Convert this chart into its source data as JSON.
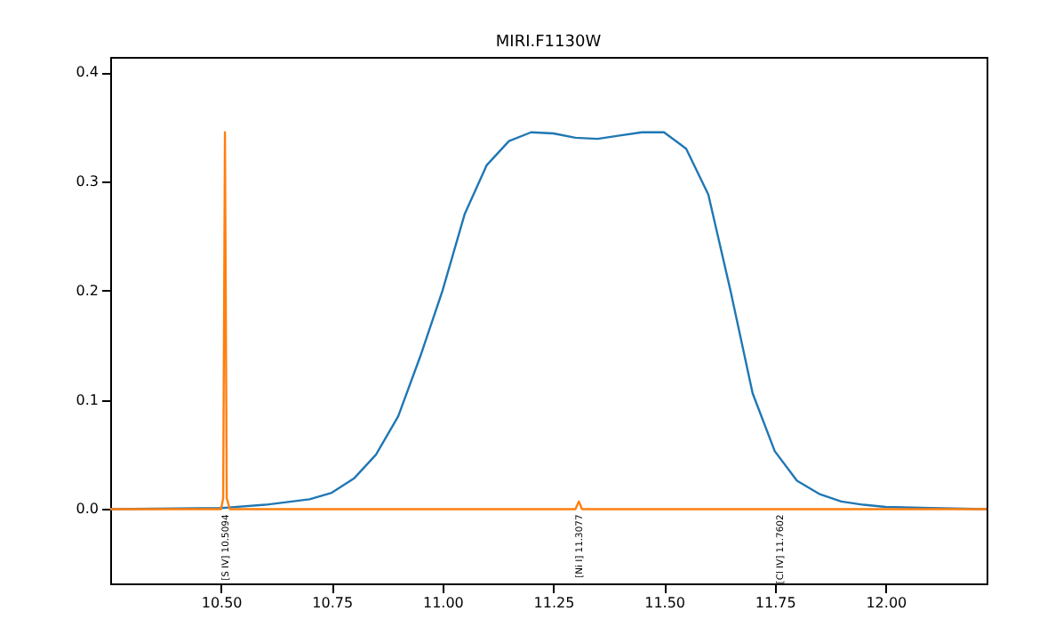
{
  "chart_data": {
    "type": "line",
    "title": "MIRI.F1130W",
    "xlim": [
      10.25,
      12.228
    ],
    "xticks": [
      {
        "value": 10.5,
        "label": "10.50"
      },
      {
        "value": 10.75,
        "label": "10.75"
      },
      {
        "value": 11,
        "label": "11.00"
      },
      {
        "value": 11.25,
        "label": "11.25"
      },
      {
        "value": 11.5,
        "label": "11.50"
      },
      {
        "value": 11.75,
        "label": "11.75"
      },
      {
        "value": 12,
        "label": "12.00"
      }
    ],
    "ylim": [
      -0.068,
      0.414
    ],
    "yticks": [
      {
        "value": 0,
        "label": "0.0"
      },
      0.1,
      0.2,
      0.3,
      0.4
    ],
    "series": [
      {
        "color": "#1f77b4",
        "x": [
          10.25,
          10.5,
          10.6,
          10.7,
          10.75,
          10.8,
          10.85,
          10.9,
          10.95,
          11.0,
          11.05,
          11.1,
          11.15,
          11.2,
          11.25,
          11.3,
          11.35,
          11.4,
          11.45,
          11.5,
          11.55,
          11.6,
          11.65,
          11.7,
          11.75,
          11.8,
          11.85,
          11.9,
          11.95,
          12.0,
          12.1,
          12.228
        ],
        "values": [
          0,
          0.001,
          0.004,
          0.009,
          0.015,
          0.028,
          0.05,
          0.085,
          0.14,
          0.2,
          0.27,
          0.315,
          0.337,
          0.345,
          0.344,
          0.34,
          0.339,
          0.342,
          0.345,
          0.345,
          0.33,
          0.288,
          0.2,
          0.106,
          0.053,
          0.026,
          0.014,
          0.007,
          0.004,
          0.002,
          0.001,
          0
        ]
      },
      {
        "color": "#ff7f0e",
        "x": [
          10.25,
          10.5,
          10.505,
          10.509,
          10.513,
          10.52,
          11.3,
          11.3077,
          11.315,
          12.228
        ],
        "values": [
          0,
          0,
          0.01,
          0.345,
          0.01,
          0,
          0,
          0.007,
          0,
          0
        ]
      }
    ],
    "annotations": [
      {
        "text": "[S IV]  10.5094",
        "x": 10.5094,
        "y": 0
      },
      {
        "text": "[Ni I]  11.3077",
        "x": 11.3077,
        "y": 0
      },
      {
        "text": "[Cl IV]  11.7602",
        "x": 11.7602,
        "y": 0
      }
    ]
  }
}
